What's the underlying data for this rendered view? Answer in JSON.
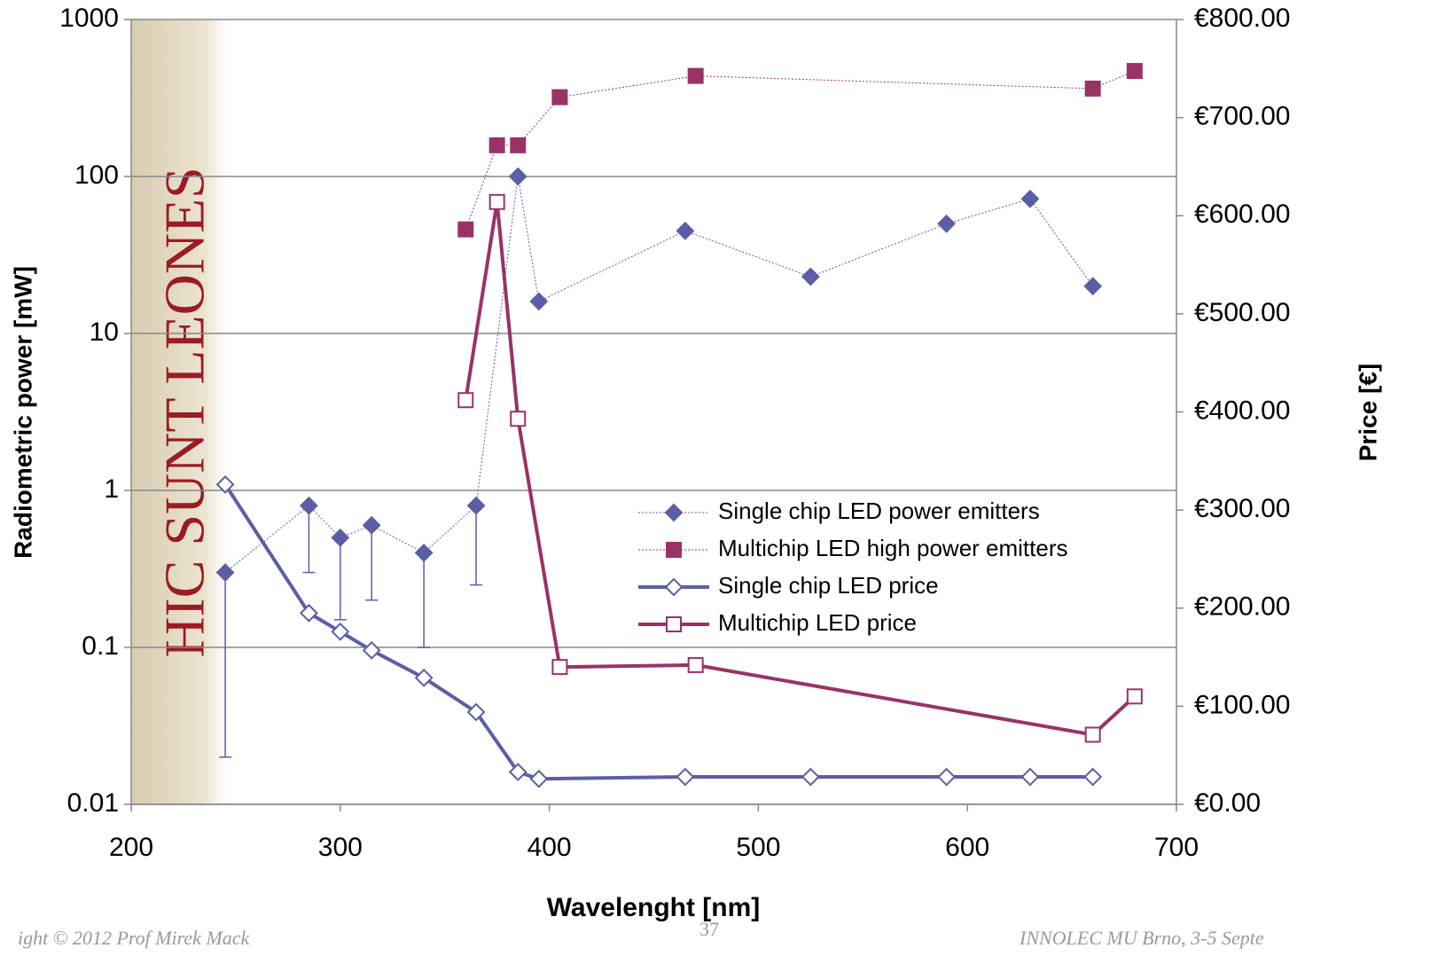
{
  "chart_data": {
    "type": "line",
    "x_label": "Wavelenght [nm]",
    "y_label": "Radiometric power [mW]",
    "y2_label": "Price  [€]",
    "annotation": "HIC SUNT LEONES",
    "footer": [
      "ight © 2012 Prof Mirek Mack",
      "37",
      "INNOLEC MU Brno, 3-5 Septe"
    ],
    "xlim": [
      200,
      700
    ],
    "xticks": [
      200,
      300,
      400,
      500,
      600,
      700
    ],
    "ylim": [
      0.01,
      1000
    ],
    "yticks": [
      0.01,
      0.1,
      1,
      10,
      100,
      1000
    ],
    "ylog": true,
    "grid": true,
    "y2lim": [
      0,
      800
    ],
    "y2ticks": [
      {
        "value": 0,
        "label": "€0.00"
      },
      {
        "value": 100,
        "label": "€100.00"
      },
      {
        "value": 200,
        "label": "€200.00"
      },
      {
        "value": 300,
        "label": "€300.00"
      },
      {
        "value": 400,
        "label": "€400.00"
      },
      {
        "value": 500,
        "label": "€500.00"
      },
      {
        "value": 600,
        "label": "€600.00"
      },
      {
        "value": 700,
        "label": "€700.00"
      },
      {
        "value": 800,
        "label": "€800.00"
      }
    ],
    "legend": "center-right",
    "series": [
      {
        "name": "Single chip LED power emitters",
        "color": "#5b5ea6",
        "marker": "diamond",
        "filled": true,
        "line_width": 1,
        "x": [
          245,
          285,
          300,
          315,
          340,
          365,
          385,
          395,
          465,
          525,
          590,
          630,
          660
        ],
        "values": [
          0.3,
          0.8,
          0.5,
          0.6,
          0.4,
          0.8,
          100,
          16,
          45,
          23,
          50,
          72,
          20
        ],
        "error_low": [
          0.02,
          0.3,
          0.15,
          0.2,
          0.1,
          0.25,
          null,
          null,
          null,
          null,
          null,
          null,
          null
        ]
      },
      {
        "name": "Multichip LED high power emitters",
        "color": "#993366",
        "marker": "square",
        "filled": true,
        "line_width": 1,
        "x": [
          360,
          375,
          385,
          405,
          470,
          660,
          680
        ],
        "values": [
          46,
          158,
          158,
          320,
          437,
          363,
          470
        ]
      },
      {
        "name": "Single chip LED price",
        "color": "#5b5ea6",
        "marker": "diamond",
        "filled": false,
        "line_width": 4,
        "axis": "y2",
        "x": [
          245,
          285,
          300,
          315,
          340,
          365,
          385,
          395,
          465,
          525,
          590,
          630,
          660
        ],
        "values": [
          326,
          195,
          176,
          157,
          129,
          94,
          33,
          26,
          28,
          28,
          28,
          28,
          28
        ]
      },
      {
        "name": "Multichip LED price",
        "color": "#993366",
        "marker": "square",
        "filled": false,
        "line_width": 4,
        "axis": "y2",
        "x": [
          360,
          375,
          385,
          405,
          470,
          660,
          680
        ],
        "values": [
          412,
          614,
          393,
          140,
          142,
          71,
          110
        ]
      }
    ]
  }
}
